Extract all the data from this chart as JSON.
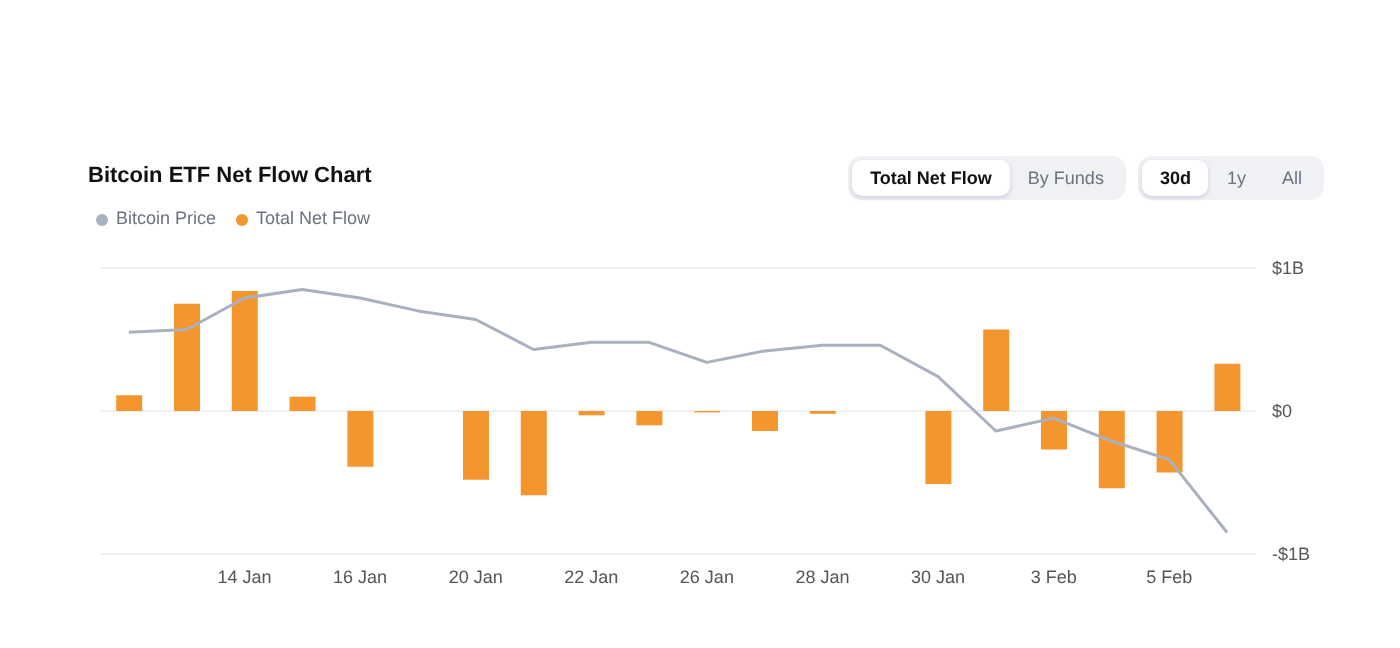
{
  "chart_data": {
    "type": "bar",
    "title": "Bitcoin ETF Net Flow Chart",
    "categories": [
      null,
      null,
      "14 Jan",
      null,
      "16 Jan",
      null,
      "20 Jan",
      null,
      "22 Jan",
      null,
      "26 Jan",
      null,
      "28 Jan",
      null,
      "30 Jan",
      null,
      "3 Feb",
      null,
      "5 Feb",
      null
    ],
    "series": [
      {
        "name": "Total Net Flow",
        "color": "#f5952e",
        "values": [
          0.11,
          0.75,
          0.84,
          0.1,
          -0.39,
          null,
          -0.48,
          -0.59,
          -0.03,
          -0.1,
          -0.01,
          -0.14,
          -0.02,
          null,
          -0.51,
          0.57,
          -0.27,
          -0.54,
          -0.43,
          0.33
        ]
      },
      {
        "name": "Bitcoin Price",
        "type": "line",
        "color": "#a9b0bf",
        "values": [
          0.55,
          0.57,
          0.79,
          0.85,
          0.79,
          0.7,
          0.64,
          0.43,
          0.48,
          0.48,
          0.34,
          0.42,
          0.46,
          0.46,
          0.24,
          -0.14,
          -0.05,
          -0.21,
          -0.34,
          -0.85
        ]
      }
    ],
    "ylim": [
      -1,
      1
    ],
    "yticks": [
      {
        "value": 1,
        "label": "$1B"
      },
      {
        "value": 0,
        "label": "$0"
      },
      {
        "value": -1,
        "label": "-$1B"
      }
    ],
    "grid": "y",
    "legend": "top left",
    "marker": "none",
    "line_style": "solid",
    "annotations": [
      "Total Net Flow",
      "By Funds",
      "30d",
      "1y",
      "All"
    ]
  }
}
